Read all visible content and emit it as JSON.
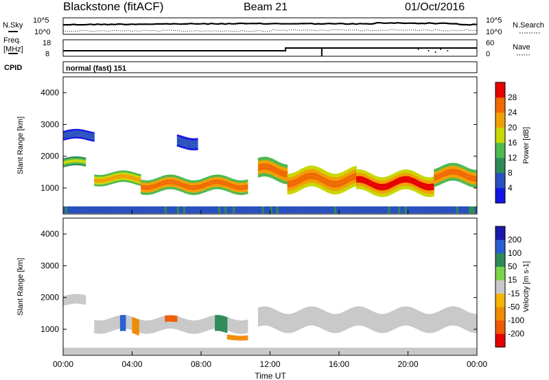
{
  "header": {
    "site": "Blackstone (fitACF)",
    "beam": "Beam 21",
    "date": "01/Oct/2016"
  },
  "noise_panel": {
    "left_label": "N.Sky",
    "right_label": "N.Search",
    "left_ticks": [
      "10^5",
      "10^0"
    ],
    "right_ticks": [
      "10^5",
      "10^0"
    ]
  },
  "freq_panel": {
    "left_label_1": "Freq.",
    "left_label_2": "[MHz]",
    "right_label": "Nave",
    "left_ticks": [
      "18",
      "8"
    ],
    "right_ticks": [
      "60",
      "0"
    ]
  },
  "cpid": {
    "label": "CPID",
    "value": "normal (fast) 151"
  },
  "colors": {
    "power_scale": [
      "#1414e6",
      "#2a4fbf",
      "#2e8b57",
      "#4fb84f",
      "#c8d800",
      "#f0a000",
      "#f06a00",
      "#e60000"
    ],
    "velocity_scale": [
      "#1a1aaa",
      "#2a5fcf",
      "#2e8b57",
      "#7bd44a",
      "#c8c8c8",
      "#f4b400",
      "#f08a00",
      "#f05a00",
      "#e60000"
    ]
  },
  "chart_data": [
    {
      "type": "heatmap",
      "title": "Power",
      "ylabel": "Slant Range [km]",
      "xlabel": "Time UT",
      "ylim": [
        180,
        4500
      ],
      "xlim": [
        0,
        24
      ],
      "y_ticks": [
        "1000",
        "2000",
        "3000",
        "4000"
      ],
      "x_ticks": [
        "00:00",
        "04:00",
        "08:00",
        "12:00",
        "16:00",
        "20:00",
        "00:00"
      ],
      "colorbar": {
        "label": "Power [dB]",
        "ticks": [
          "4",
          "8",
          "12",
          "16",
          "20",
          "24",
          "28"
        ],
        "range": [
          0,
          30
        ]
      },
      "series": [
        {
          "from_h": 0.0,
          "to_h": 1.3,
          "center_km": 1800,
          "width_km": 280,
          "peak": 18
        },
        {
          "from_h": 0.0,
          "to_h": 1.8,
          "center_km": 2650,
          "width_km": 300,
          "peak": 6
        },
        {
          "from_h": 1.8,
          "to_h": 4.5,
          "center_km": 1300,
          "width_km": 360,
          "peak": 22
        },
        {
          "from_h": 4.5,
          "to_h": 10.7,
          "center_km": 1100,
          "width_km": 460,
          "peak": 27
        },
        {
          "from_h": 6.6,
          "to_h": 7.8,
          "center_km": 2450,
          "width_km": 380,
          "peak": 6
        },
        {
          "from_h": 11.3,
          "to_h": 13.0,
          "center_km": 1550,
          "width_km": 620,
          "peak": 26
        },
        {
          "from_h": 13.0,
          "to_h": 17.0,
          "center_km": 1250,
          "width_km": 650,
          "peak": 28
        },
        {
          "from_h": 17.0,
          "to_h": 21.5,
          "center_km": 1150,
          "width_km": 620,
          "peak": 29
        },
        {
          "from_h": 21.5,
          "to_h": 24.0,
          "center_km": 1400,
          "width_km": 560,
          "peak": 27
        }
      ]
    },
    {
      "type": "heatmap",
      "title": "Velocity",
      "ylabel": "Slant Range [km]",
      "xlabel": "Time UT",
      "ylim": [
        180,
        4500
      ],
      "xlim": [
        0,
        24
      ],
      "y_ticks": [
        "1000",
        "2000",
        "3000",
        "4000"
      ],
      "x_ticks": [
        "00:00",
        "04:00",
        "08:00",
        "12:00",
        "16:00",
        "20:00",
        "00:00"
      ],
      "colorbar": {
        "label": "Velocity [m s-1]",
        "ticks": [
          "200",
          "100",
          "50",
          "15",
          "-15",
          "-50",
          "-100",
          "-200"
        ],
        "range": [
          -250,
          250
        ]
      },
      "series": [
        {
          "from_h": 0.0,
          "to_h": 1.3,
          "center_km": 1900,
          "width_km": 300,
          "value": 0
        },
        {
          "from_h": 1.8,
          "to_h": 10.7,
          "center_km": 1150,
          "width_km": 420,
          "value": 0
        },
        {
          "from_h": 3.3,
          "to_h": 3.6,
          "center_km": 1100,
          "width_km": 500,
          "value": 80
        },
        {
          "from_h": 4.0,
          "to_h": 4.4,
          "center_km": 1100,
          "width_km": 500,
          "value": -60
        },
        {
          "from_h": 5.9,
          "to_h": 6.6,
          "center_km": 1300,
          "width_km": 200,
          "value": -150
        },
        {
          "from_h": 8.8,
          "to_h": 9.5,
          "center_km": 1100,
          "width_km": 500,
          "value": 60
        },
        {
          "from_h": 9.5,
          "to_h": 10.7,
          "center_km": 750,
          "width_km": 150,
          "value": -80
        },
        {
          "from_h": 11.3,
          "to_h": 24.0,
          "center_km": 1300,
          "width_km": 600,
          "value": 0
        }
      ]
    }
  ]
}
